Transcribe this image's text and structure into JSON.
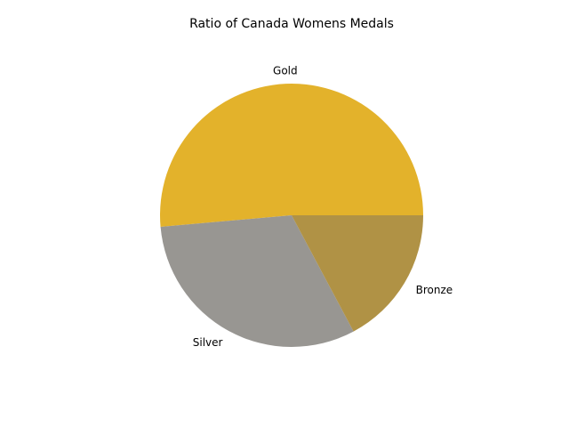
{
  "chart_data": {
    "type": "pie",
    "title": "Ratio of Canada Womens Medals",
    "categories": [
      "Gold",
      "Silver",
      "Bronze"
    ],
    "values": [
      51.4,
      31.4,
      17.2
    ],
    "colors": [
      "#e3b22b",
      "#989692",
      "#b09245"
    ],
    "start_angle_deg": 0,
    "direction": "counterclockwise",
    "legend": "none"
  }
}
